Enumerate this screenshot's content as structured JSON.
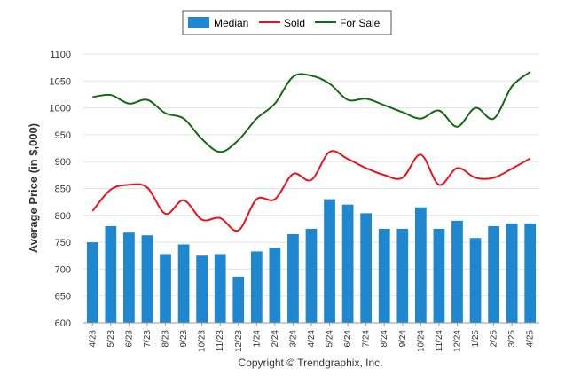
{
  "chart_data": {
    "type": "bar",
    "ylabel": "Average Price (in $,000)",
    "ylim": [
      600,
      1100
    ],
    "yticks": [
      600,
      650,
      700,
      750,
      800,
      850,
      900,
      950,
      1000,
      1050,
      1100
    ],
    "categories": [
      "4/23",
      "5/23",
      "6/23",
      "7/23",
      "8/23",
      "9/23",
      "10/23",
      "11/23",
      "12/23",
      "1/24",
      "2/24",
      "3/24",
      "4/24",
      "5/24",
      "6/24",
      "7/24",
      "8/24",
      "9/24",
      "10/24",
      "11/24",
      "12/24",
      "1/25",
      "2/25",
      "3/25",
      "4/25"
    ],
    "series": [
      {
        "name": "Median",
        "type": "bar",
        "color": "#1f86d0",
        "values": [
          750,
          780,
          768,
          763,
          728,
          746,
          725,
          728,
          686,
          733,
          740,
          765,
          775,
          830,
          820,
          804,
          775,
          775,
          815,
          775,
          790,
          758,
          780,
          785,
          785
        ]
      },
      {
        "name": "Sold",
        "type": "line",
        "color": "#e8141b",
        "values": [
          808,
          848,
          857,
          852,
          803,
          828,
          792,
          795,
          772,
          830,
          830,
          877,
          866,
          918,
          905,
          888,
          875,
          870,
          913,
          857,
          888,
          870,
          870,
          887,
          906
        ]
      },
      {
        "name": "For Sale",
        "type": "line",
        "color": "#126b12",
        "values": [
          1020,
          1024,
          1008,
          1015,
          990,
          980,
          942,
          918,
          940,
          980,
          1008,
          1058,
          1060,
          1045,
          1015,
          1017,
          1005,
          992,
          980,
          995,
          965,
          1000,
          980,
          1040,
          1067
        ]
      }
    ],
    "legend_position": "top-center",
    "grid": true
  },
  "footer": {
    "copyright": "Copyright © Trendgraphix, Inc."
  }
}
